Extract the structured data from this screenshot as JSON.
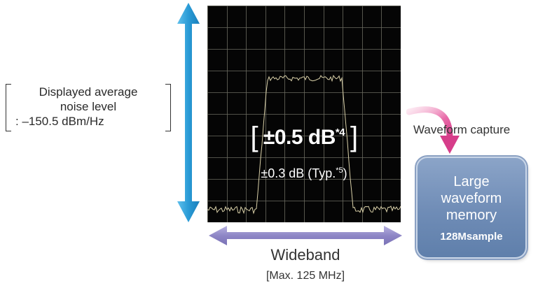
{
  "noise_note": {
    "line1": "Displayed average",
    "line2": "noise level",
    "line3": ": –150.5 dBm/Hz"
  },
  "spectrum": {
    "spec_value": "±0.5 dB",
    "spec_note": "*4",
    "typ_value": "±0.3 dB (Typ.",
    "typ_note": "*5",
    "typ_close": ")",
    "bracket_open": "[",
    "bracket_close": "]"
  },
  "wideband": {
    "label": "Wideband",
    "max": "[Max. 125 MHz]"
  },
  "capture": {
    "label": "Waveform capture"
  },
  "memory": {
    "line1": "Large",
    "line2": "waveform",
    "line3": "memory",
    "size": "128Msample"
  },
  "colors": {
    "vertical_arrow": "#2a9bd6",
    "horizontal_arrow": "#8e86c6",
    "capture_arrow": "#e0569a",
    "memory_box": "#6f8cb6",
    "screen": "#050505",
    "trace": "#d9d0a8"
  }
}
